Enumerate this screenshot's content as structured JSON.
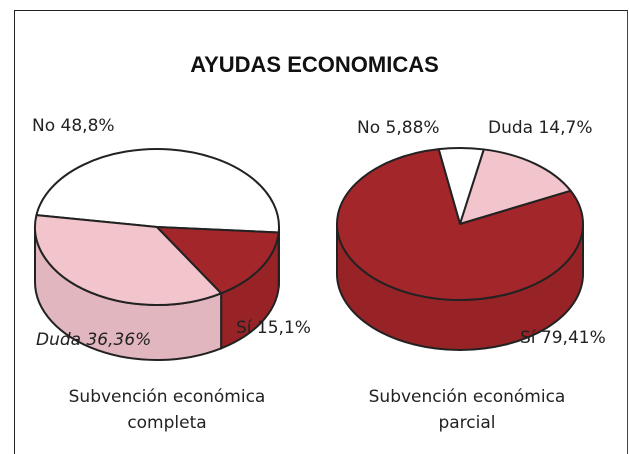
{
  "title": "AYUDAS ECONOMICAS",
  "chart_data": [
    {
      "type": "pie",
      "caption": "Subvención económica completa",
      "categories": [
        "No",
        "Duda",
        "Sí"
      ],
      "values": [
        48.8,
        36.36,
        15.1
      ],
      "value_labels": [
        "48,8%",
        "36,36%",
        "15,1%"
      ],
      "colors": [
        "#ffffff",
        "#f2c4cc",
        "#a3262a"
      ]
    },
    {
      "type": "pie",
      "caption": "Subvención económica parcial",
      "categories": [
        "No",
        "Duda",
        "Sí"
      ],
      "values": [
        5.88,
        14.7,
        79.41
      ],
      "value_labels": [
        "5,88%",
        "14,7%",
        "79,41%"
      ],
      "colors": [
        "#ffffff",
        "#f2c4cc",
        "#a3262a"
      ]
    }
  ]
}
